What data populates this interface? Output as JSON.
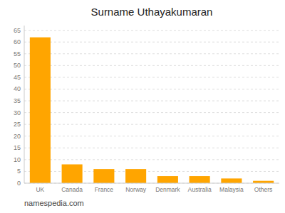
{
  "chart_data": {
    "type": "bar",
    "title": "Surname Uthayakumaran",
    "categories": [
      "UK",
      "Canada",
      "France",
      "Norway",
      "Denmark",
      "Australia",
      "Malaysia",
      "Others"
    ],
    "values": [
      62,
      8,
      6,
      6,
      3,
      3,
      2,
      1
    ],
    "color": "#FFA500",
    "ylim": [
      0,
      67
    ],
    "yticks": [
      0,
      5,
      10,
      15,
      20,
      25,
      30,
      35,
      40,
      45,
      50,
      55,
      60,
      65
    ],
    "grid": true,
    "annotations": [
      "namespedia.com"
    ]
  }
}
